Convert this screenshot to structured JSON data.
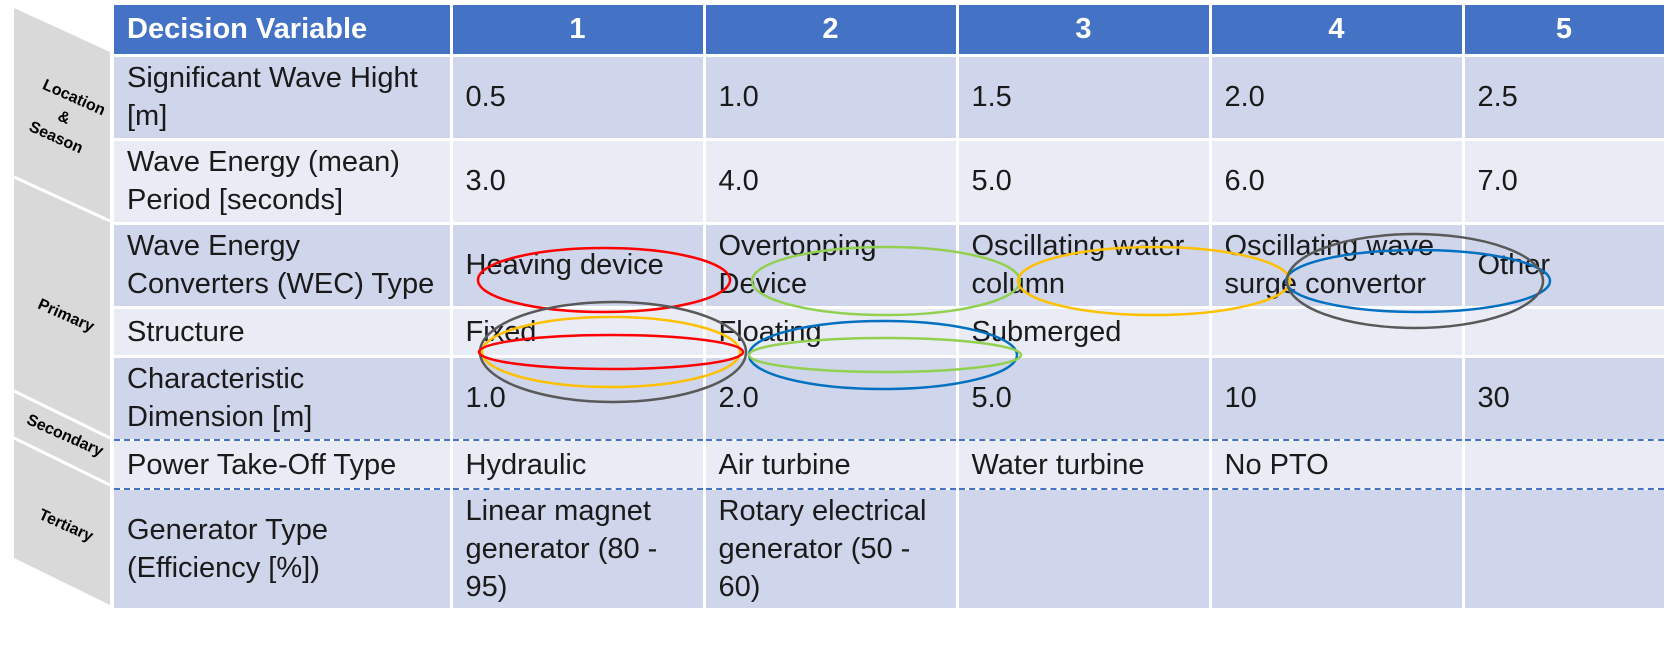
{
  "side_labels": {
    "location_season": [
      "Location",
      "&",
      "Season"
    ],
    "primary": "Primary",
    "secondary": "Secondary",
    "tertiary": "Tertiary"
  },
  "table": {
    "header": [
      "Decision Variable",
      "1",
      "2",
      "3",
      "4",
      "5"
    ],
    "rows": [
      [
        "Significant Wave Hight [m]",
        "0.5",
        "1.0",
        "1.5",
        "2.0",
        "2.5"
      ],
      [
        "Wave Energy (mean) Period [seconds]",
        "3.0",
        "4.0",
        "5.0",
        "6.0",
        "7.0"
      ],
      [
        "Wave Energy Converters (WEC) Type",
        "Heaving device",
        "Overtopping Device",
        "Oscillating water column",
        "Oscillating wave surge convertor",
        "Other"
      ],
      [
        "Structure",
        "Fixed",
        "Floating",
        "Submerged",
        "",
        ""
      ],
      [
        "Characteristic Dimension [m]",
        "1.0",
        "2.0",
        "5.0",
        "10",
        "30"
      ],
      [
        "Power Take-Off Type",
        "Hydraulic",
        "Air turbine",
        "Water turbine",
        "No PTO",
        ""
      ],
      [
        "Generator Type (Efficiency [%])",
        "Linear magnet generator (80 - 95)",
        "Rotary electrical generator (50 - 60)",
        "",
        "",
        ""
      ]
    ]
  },
  "colors": {
    "header": "#4472c4",
    "row_dark": "#cfd5ea",
    "row_light": "#e9ebf5",
    "panel": "#d9d9d9",
    "ellipse_red": "#ff0000",
    "ellipse_green": "#92d050",
    "ellipse_yellow": "#ffc000",
    "ellipse_blue": "#0070c0",
    "ellipse_gray": "#595959"
  }
}
